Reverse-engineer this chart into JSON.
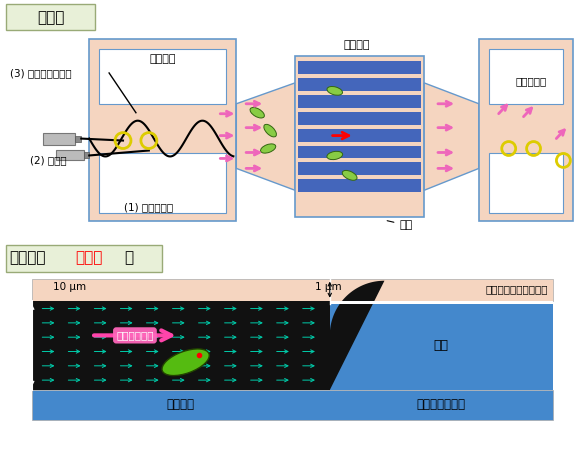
{
  "title_top": "俯瞰図",
  "label_jokyufluro": "除去流路",
  "label_tanrifluro": "単離流路",
  "label_dam": "ダム",
  "label_baiyoeki_exit": "培養液出口",
  "label_1": "(1) 懸濁液導入",
  "label_2": "(2) 培養液",
  "label_3": "(3) 過剰細胞の除去",
  "label_baiyoeki_kouryu_glass": "培養液交換流路ガラス",
  "label_tanri_glass": "単離流路ガラス",
  "label_tanri_fluro_bottom": "単離流路",
  "label_dam_bottom": "ダム",
  "label_flow": "培養液の流れ",
  "label_10um": "10 μm",
  "label_1um": "1 μm",
  "bg_color": "#ffffff",
  "chip_fill": "#f5d5c0",
  "chip_border": "#6699cc",
  "dam_blue": "#4466bb",
  "section_bg": "#e8f0d8",
  "blue_channel": "#4488cc"
}
